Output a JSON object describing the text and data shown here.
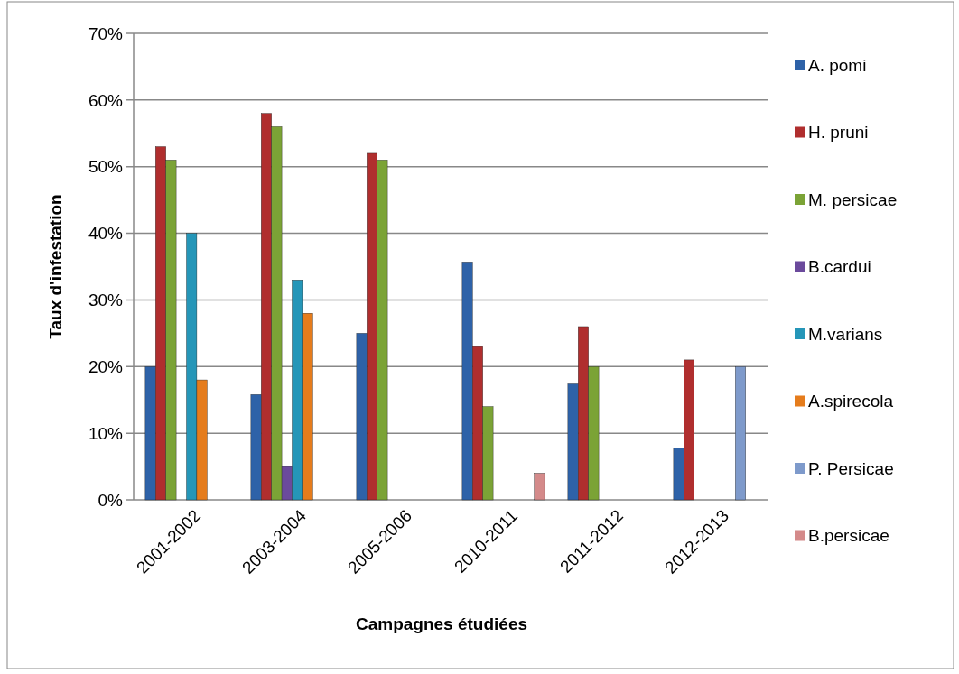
{
  "chart_data": {
    "type": "bar",
    "xlabel": "Campagnes étudiées",
    "ylabel": "Taux d'infestation",
    "categories": [
      "2001-2002",
      "2003-2004",
      "2005-2006",
      "2010-2011",
      "2011-2012",
      "2012-2013"
    ],
    "series": [
      {
        "name": "A. pomi",
        "color": "#2e62a8",
        "values": [
          20,
          15.8,
          25,
          35.7,
          17.4,
          7.8
        ]
      },
      {
        "name": "H. pruni",
        "color": "#b02e2e",
        "values": [
          53,
          58,
          52,
          23,
          26,
          21
        ]
      },
      {
        "name": "M. persicae",
        "color": "#7ba336",
        "values": [
          51,
          56,
          51,
          14,
          20,
          null
        ]
      },
      {
        "name": "B.cardui",
        "color": "#6b4a9c",
        "values": [
          null,
          5,
          null,
          null,
          null,
          null
        ]
      },
      {
        "name": "M.varians",
        "color": "#2596b8",
        "values": [
          40,
          33,
          null,
          null,
          null,
          null
        ]
      },
      {
        "name": "A.spirecola",
        "color": "#e57c1c",
        "values": [
          18,
          28,
          null,
          null,
          null,
          null
        ]
      },
      {
        "name": "P.  Persicae",
        "color": "#7e9acb",
        "values": [
          null,
          null,
          null,
          null,
          null,
          20
        ]
      },
      {
        "name": "B.persicae",
        "color": "#d48a8a",
        "values": [
          null,
          null,
          null,
          4,
          null,
          null
        ]
      }
    ],
    "ylim": [
      0,
      70
    ],
    "yticks": [
      {
        "value": 0,
        "label": "0%"
      },
      {
        "value": 10,
        "label": "10%"
      },
      {
        "value": 20,
        "label": "20%"
      },
      {
        "value": 30,
        "label": "30%"
      },
      {
        "value": 40,
        "label": "40%"
      },
      {
        "value": 50,
        "label": "50%"
      },
      {
        "value": 60,
        "label": "60%"
      },
      {
        "value": 70,
        "label": "70%"
      }
    ],
    "grid": "y",
    "legend": "right"
  }
}
